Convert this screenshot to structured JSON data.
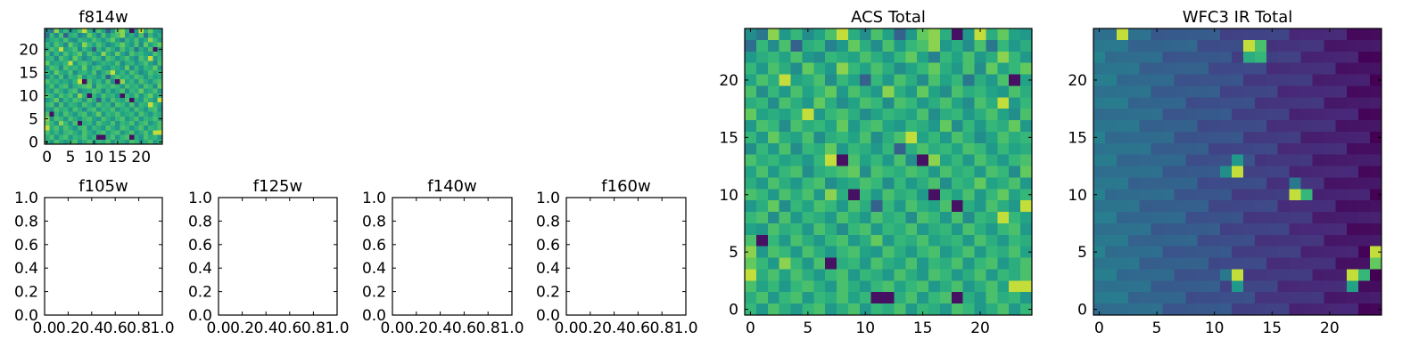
{
  "figure": {
    "background": "#ffffff",
    "axis_color": "#000000"
  },
  "chart_data": [
    {
      "id": "f814w",
      "type": "heatmap",
      "title": "f814w",
      "xlim": [
        -0.5,
        24.5
      ],
      "ylim": [
        -0.5,
        24.5
      ],
      "xticks": [
        "0",
        "5",
        "10",
        "15",
        "20"
      ],
      "yticks": [
        "0",
        "5",
        "10",
        "15",
        "20"
      ],
      "xtick_values": [
        0,
        5,
        10,
        15,
        20
      ],
      "ytick_values": [
        0,
        5,
        10,
        15,
        20
      ],
      "colormap": "viridis",
      "grid": false,
      "same_values_as": "ACS Total"
    },
    {
      "id": "f105w",
      "type": "heatmap",
      "title": "f105w",
      "empty": true,
      "xlim": [
        0,
        1
      ],
      "ylim": [
        0,
        1
      ],
      "xticks": [
        "0.0",
        "0.2",
        "0.4",
        "0.6",
        "0.8",
        "1.0"
      ],
      "yticks": [
        "0.0",
        "0.2",
        "0.4",
        "0.6",
        "0.8",
        "1.0"
      ],
      "xtick_values": [
        0,
        0.2,
        0.4,
        0.6,
        0.8,
        1.0
      ],
      "ytick_values": [
        0,
        0.2,
        0.4,
        0.6,
        0.8,
        1.0
      ],
      "grid": false
    },
    {
      "id": "f125w",
      "type": "heatmap",
      "title": "f125w",
      "empty": true,
      "xlim": [
        0,
        1
      ],
      "ylim": [
        0,
        1
      ],
      "xticks": [
        "0.0",
        "0.2",
        "0.4",
        "0.6",
        "0.8",
        "1.0"
      ],
      "yticks": [
        "0.0",
        "0.2",
        "0.4",
        "0.6",
        "0.8",
        "1.0"
      ],
      "xtick_values": [
        0,
        0.2,
        0.4,
        0.6,
        0.8,
        1.0
      ],
      "ytick_values": [
        0,
        0.2,
        0.4,
        0.6,
        0.8,
        1.0
      ],
      "grid": false
    },
    {
      "id": "f140w",
      "type": "heatmap",
      "title": "f140w",
      "empty": true,
      "xlim": [
        0,
        1
      ],
      "ylim": [
        0,
        1
      ],
      "xticks": [
        "0.0",
        "0.2",
        "0.4",
        "0.6",
        "0.8",
        "1.0"
      ],
      "yticks": [
        "0.0",
        "0.2",
        "0.4",
        "0.6",
        "0.8",
        "1.0"
      ],
      "xtick_values": [
        0,
        0.2,
        0.4,
        0.6,
        0.8,
        1.0
      ],
      "ytick_values": [
        0,
        0.2,
        0.4,
        0.6,
        0.8,
        1.0
      ],
      "grid": false
    },
    {
      "id": "f160w",
      "type": "heatmap",
      "title": "f160w",
      "empty": true,
      "xlim": [
        0,
        1
      ],
      "ylim": [
        0,
        1
      ],
      "xticks": [
        "0.0",
        "0.2",
        "0.4",
        "0.6",
        "0.8",
        "1.0"
      ],
      "yticks": [
        "0.0",
        "0.2",
        "0.4",
        "0.6",
        "0.8",
        "1.0"
      ],
      "xtick_values": [
        0,
        0.2,
        0.4,
        0.6,
        0.8,
        1.0
      ],
      "ytick_values": [
        0,
        0.2,
        0.4,
        0.6,
        0.8,
        1.0
      ],
      "grid": false
    },
    {
      "id": "acs",
      "type": "heatmap",
      "title": "ACS Total",
      "xlim": [
        -0.5,
        24.5
      ],
      "ylim": [
        -0.5,
        24.5
      ],
      "xticks": [
        "0",
        "5",
        "10",
        "15",
        "20"
      ],
      "yticks": [
        "0",
        "5",
        "10",
        "15",
        "20"
      ],
      "xtick_values": [
        0,
        5,
        10,
        15,
        20
      ],
      "ytick_values": [
        0,
        5,
        10,
        15,
        20
      ],
      "colormap": "viridis",
      "grid": false,
      "value_range": [
        0,
        1
      ],
      "values_note": "rows listed from y=24 (top) to y=0 (bottom); columns x=0..24",
      "values": [
        [
          0.55,
          0.45,
          0.9,
          0.6,
          0.75,
          0.55,
          0.65,
          0.8,
          0.95,
          0.7,
          0.55,
          0.8,
          0.65,
          0.35,
          0.6,
          0.85,
          0.9,
          0.7,
          0.05,
          0.6,
          0.95,
          0.7,
          0.85,
          0.65,
          0.6
        ],
        [
          0.4,
          0.75,
          0.55,
          0.8,
          0.35,
          0.7,
          0.75,
          0.5,
          0.6,
          0.85,
          0.7,
          0.55,
          0.8,
          0.6,
          0.75,
          0.8,
          0.9,
          0.6,
          0.7,
          0.55,
          0.8,
          0.45,
          0.75,
          0.6,
          0.7
        ],
        [
          0.6,
          0.7,
          0.75,
          0.65,
          0.8,
          0.6,
          0.55,
          0.75,
          0.7,
          0.65,
          0.8,
          0.7,
          0.6,
          0.75,
          0.85,
          0.65,
          0.5,
          0.75,
          0.65,
          0.8,
          0.6,
          0.7,
          0.9,
          0.75,
          0.6
        ],
        [
          0.75,
          0.6,
          0.8,
          0.7,
          0.55,
          0.85,
          0.7,
          0.6,
          0.9,
          0.75,
          0.65,
          0.8,
          0.7,
          0.55,
          0.65,
          0.75,
          0.85,
          0.7,
          0.6,
          0.8,
          0.55,
          0.85,
          0.65,
          0.75,
          0.85
        ],
        [
          0.65,
          0.8,
          0.7,
          0.95,
          0.65,
          0.7,
          0.8,
          0.55,
          0.75,
          0.65,
          0.35,
          0.75,
          0.6,
          0.8,
          0.7,
          0.55,
          0.8,
          0.65,
          0.75,
          0.45,
          0.7,
          0.6,
          0.8,
          0.05,
          0.65
        ],
        [
          0.8,
          0.55,
          0.75,
          0.6,
          0.8,
          0.65,
          0.75,
          0.85,
          0.6,
          0.8,
          0.7,
          0.6,
          0.9,
          0.7,
          0.6,
          0.85,
          0.65,
          0.55,
          0.8,
          0.7,
          0.75,
          0.65,
          0.6,
          0.8,
          0.7
        ],
        [
          0.7,
          0.75,
          0.55,
          0.8,
          0.7,
          0.6,
          0.85,
          0.7,
          0.55,
          0.65,
          0.8,
          0.75,
          0.55,
          0.8,
          0.75,
          0.6,
          0.7,
          0.8,
          0.65,
          0.55,
          0.8,
          0.7,
          0.95,
          0.6,
          0.75
        ],
        [
          0.85,
          0.65,
          0.7,
          0.65,
          0.75,
          0.95,
          0.6,
          0.75,
          0.8,
          0.7,
          0.55,
          0.65,
          0.75,
          0.7,
          0.65,
          0.8,
          0.55,
          0.7,
          0.75,
          0.6,
          0.7,
          0.8,
          0.65,
          0.55,
          0.8
        ],
        [
          0.6,
          0.8,
          0.75,
          0.55,
          0.8,
          0.7,
          0.75,
          0.65,
          0.85,
          0.6,
          0.75,
          0.8,
          0.65,
          0.6,
          0.75,
          0.7,
          0.6,
          0.85,
          0.55,
          0.75,
          0.6,
          0.75,
          0.7,
          0.85,
          0.6
        ],
        [
          0.75,
          0.6,
          0.85,
          0.7,
          0.65,
          0.8,
          0.55,
          0.7,
          0.75,
          0.65,
          0.8,
          0.55,
          0.7,
          0.8,
          0.95,
          0.65,
          0.75,
          0.6,
          0.8,
          0.7,
          0.55,
          0.65,
          0.8,
          0.7,
          0.75
        ],
        [
          0.55,
          0.75,
          0.6,
          0.8,
          0.55,
          0.75,
          0.7,
          0.85,
          0.6,
          0.75,
          0.7,
          0.6,
          0.75,
          0.35,
          0.7,
          0.8,
          0.7,
          0.75,
          0.65,
          0.8,
          0.75,
          0.6,
          0.75,
          0.65,
          0.7
        ],
        [
          0.8,
          0.7,
          0.75,
          0.65,
          0.7,
          0.6,
          0.75,
          0.95,
          0.05,
          0.8,
          0.65,
          0.75,
          0.6,
          0.8,
          0.55,
          0.05,
          0.9,
          0.65,
          0.75,
          0.6,
          0.8,
          0.7,
          0.6,
          0.75,
          0.8
        ],
        [
          0.65,
          0.8,
          0.6,
          0.75,
          0.8,
          0.55,
          0.7,
          0.75,
          0.8,
          0.85,
          0.55,
          0.8,
          0.75,
          0.7,
          0.8,
          0.75,
          0.6,
          0.8,
          0.7,
          0.75,
          0.6,
          0.8,
          0.75,
          0.55,
          0.85
        ],
        [
          0.7,
          0.6,
          0.8,
          0.7,
          0.6,
          0.75,
          0.8,
          0.55,
          0.65,
          0.7,
          0.8,
          0.75,
          0.55,
          0.75,
          0.6,
          0.7,
          0.8,
          0.55,
          0.75,
          0.7,
          0.85,
          0.65,
          0.7,
          0.8,
          0.6
        ],
        [
          0.8,
          0.75,
          0.6,
          0.8,
          0.7,
          0.8,
          0.6,
          0.9,
          0.7,
          0.05,
          0.75,
          0.6,
          0.8,
          0.7,
          0.75,
          0.6,
          0.05,
          0.75,
          0.65,
          0.8,
          0.6,
          0.75,
          0.85,
          0.65,
          0.75
        ],
        [
          0.6,
          0.7,
          0.85,
          0.55,
          0.75,
          0.65,
          0.8,
          0.75,
          0.6,
          0.8,
          0.7,
          0.35,
          0.75,
          0.6,
          0.8,
          0.7,
          0.65,
          0.8,
          0.05,
          0.7,
          0.6,
          0.8,
          0.7,
          0.6,
          0.95
        ],
        [
          0.75,
          0.8,
          0.55,
          0.8,
          0.6,
          0.75,
          0.7,
          0.6,
          0.8,
          0.7,
          0.6,
          0.8,
          0.7,
          0.75,
          0.55,
          0.8,
          0.75,
          0.6,
          0.8,
          0.55,
          0.75,
          0.7,
          0.95,
          0.75,
          0.65
        ],
        [
          0.65,
          0.6,
          0.8,
          0.7,
          0.75,
          0.6,
          0.8,
          0.7,
          0.55,
          0.75,
          0.8,
          0.6,
          0.75,
          0.7,
          0.8,
          0.6,
          0.7,
          0.75,
          0.6,
          0.8,
          0.7,
          0.6,
          0.75,
          0.8,
          0.6
        ],
        [
          0.8,
          0.05,
          0.75,
          0.6,
          0.8,
          0.7,
          0.6,
          0.75,
          0.8,
          0.6,
          0.7,
          0.85,
          0.6,
          0.75,
          0.7,
          0.8,
          0.65,
          0.7,
          0.75,
          0.6,
          0.8,
          0.7,
          0.6,
          0.75,
          0.7
        ],
        [
          0.9,
          0.6,
          0.8,
          0.75,
          0.6,
          0.8,
          0.7,
          0.6,
          0.75,
          0.8,
          0.65,
          0.6,
          0.8,
          0.7,
          0.6,
          0.75,
          0.8,
          0.6,
          0.7,
          0.8,
          0.6,
          0.75,
          0.7,
          0.8,
          0.65
        ],
        [
          0.85,
          0.75,
          0.6,
          0.9,
          0.75,
          0.6,
          0.8,
          0.05,
          0.7,
          0.75,
          0.6,
          0.8,
          0.7,
          0.65,
          0.8,
          0.6,
          0.75,
          0.7,
          0.8,
          0.6,
          0.75,
          0.8,
          0.6,
          0.7,
          0.8
        ],
        [
          0.95,
          0.7,
          0.8,
          0.65,
          0.8,
          0.7,
          0.6,
          0.75,
          0.8,
          0.6,
          0.75,
          0.7,
          0.6,
          0.8,
          0.7,
          0.6,
          0.8,
          0.75,
          0.6,
          0.7,
          0.8,
          0.6,
          0.75,
          0.7,
          0.8
        ],
        [
          0.8,
          0.65,
          0.75,
          0.6,
          0.75,
          0.8,
          0.7,
          0.6,
          0.8,
          0.7,
          0.6,
          0.75,
          0.8,
          0.65,
          0.75,
          0.8,
          0.6,
          0.7,
          0.8,
          0.6,
          0.7,
          0.8,
          0.65,
          0.95,
          0.95
        ],
        [
          0.7,
          0.8,
          0.6,
          0.75,
          0.8,
          0.6,
          0.75,
          0.7,
          0.8,
          0.65,
          0.75,
          0.05,
          0.05,
          0.7,
          0.8,
          0.6,
          0.75,
          0.8,
          0.05,
          0.7,
          0.6,
          0.8,
          0.7,
          0.75,
          0.6
        ],
        [
          0.75,
          0.6,
          0.8,
          0.7,
          0.6,
          0.75,
          0.8,
          0.6,
          0.7,
          0.8,
          0.6,
          0.75,
          0.7,
          0.8,
          0.6,
          0.75,
          0.7,
          0.6,
          0.8,
          0.75,
          0.6,
          0.7,
          0.8,
          0.6,
          0.75
        ]
      ]
    },
    {
      "id": "ir",
      "type": "heatmap",
      "title": "WFC3 IR Total",
      "xlim": [
        -0.5,
        24.5
      ],
      "ylim": [
        -0.5,
        24.5
      ],
      "xticks": [
        "0",
        "5",
        "10",
        "15",
        "20"
      ],
      "yticks": [
        "0",
        "5",
        "10",
        "15",
        "20"
      ],
      "xtick_values": [
        0,
        5,
        10,
        15,
        20
      ],
      "ytick_values": [
        0,
        5,
        10,
        15,
        20
      ],
      "colormap": "viridis",
      "grid": false,
      "value_range": [
        0,
        1
      ],
      "values_note": "smooth background gradient (about 0.45 at left, 0.05 at right) with bright pixels; hot pixels listed as [x, y, value]",
      "background_left": 0.45,
      "background_right": 0.05,
      "hot_pixels": [
        [
          2,
          24,
          0.95
        ],
        [
          13,
          23,
          0.95
        ],
        [
          14,
          23,
          0.8
        ],
        [
          13,
          22,
          0.7
        ],
        [
          14,
          22,
          0.75
        ],
        [
          12,
          12,
          0.95
        ],
        [
          11,
          12,
          0.55
        ],
        [
          12,
          13,
          0.6
        ],
        [
          17,
          10,
          0.95
        ],
        [
          18,
          10,
          0.75
        ],
        [
          17,
          11,
          0.45
        ],
        [
          24,
          5,
          0.95
        ],
        [
          24,
          4,
          0.85
        ],
        [
          23,
          3,
          0.75
        ],
        [
          22,
          3,
          0.95
        ],
        [
          22,
          2,
          0.65
        ],
        [
          12,
          3,
          0.95
        ],
        [
          12,
          2,
          0.6
        ],
        [
          11,
          3,
          0.45
        ]
      ]
    }
  ]
}
